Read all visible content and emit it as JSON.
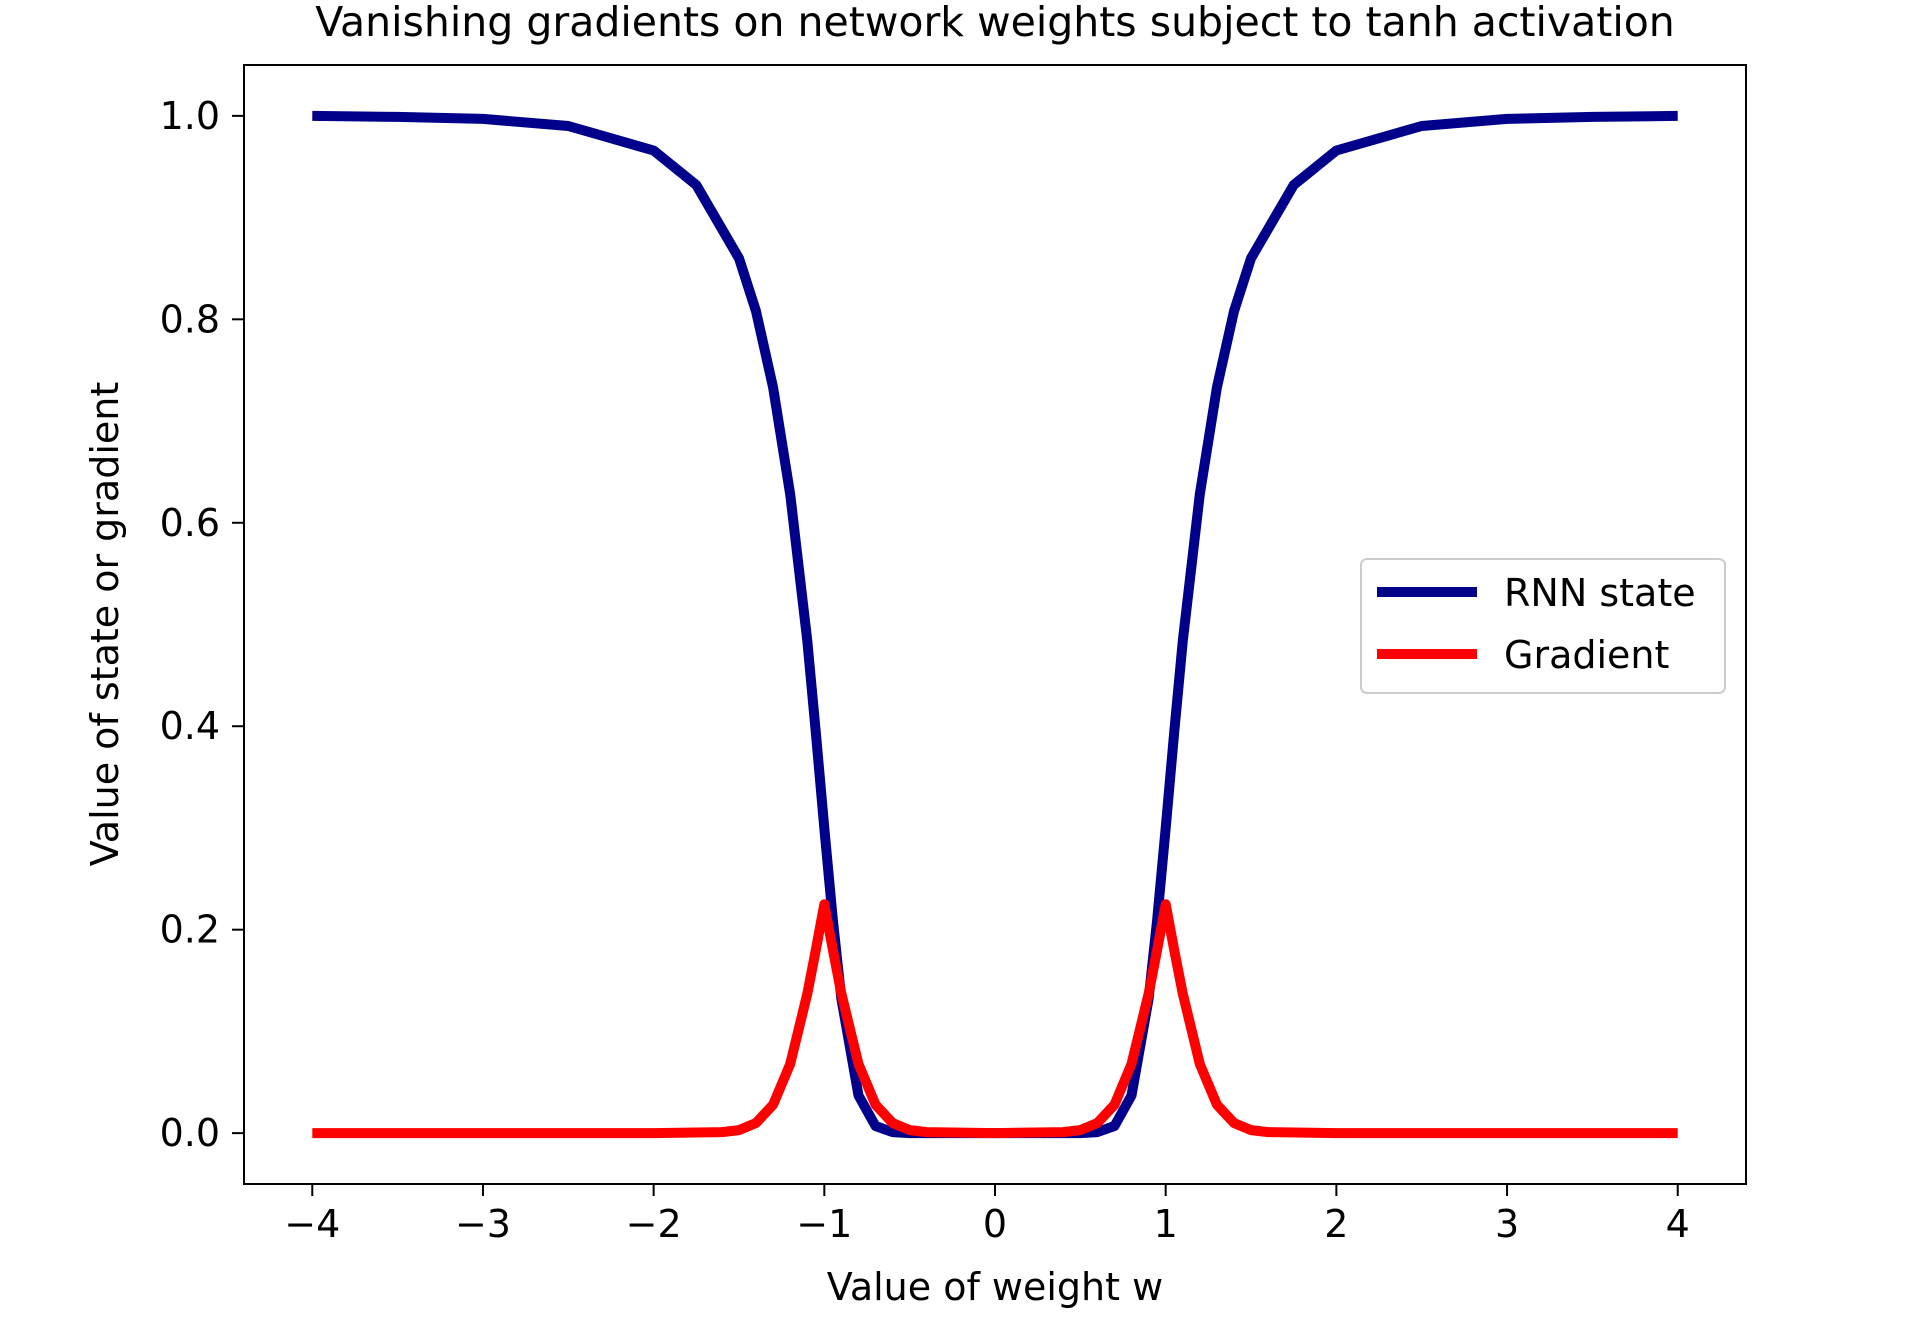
{
  "chart_data": {
    "type": "line",
    "title": "Vanishing gradients on network weights subject to tanh activation",
    "xlabel": "Value of weight w",
    "ylabel": "Value of state or gradient",
    "xlim": [
      -4.4,
      4.4
    ],
    "ylim": [
      -0.05,
      1.05
    ],
    "xticks": [
      -4,
      -3,
      -2,
      -1,
      0,
      1,
      2,
      3,
      4
    ],
    "xtick_labels": [
      "−4",
      "−3",
      "−2",
      "−1",
      "0",
      "1",
      "2",
      "3",
      "4"
    ],
    "yticks": [
      0.0,
      0.2,
      0.4,
      0.6,
      0.8,
      1.0
    ],
    "ytick_labels": [
      "0.0",
      "0.2",
      "0.4",
      "0.6",
      "0.8",
      "1.0"
    ],
    "grid": false,
    "legend_position": "center-right",
    "series": [
      {
        "name": "RNN state",
        "color": "#00008b",
        "x": [
          -4.0,
          -3.5,
          -3.0,
          -2.5,
          -2.0,
          -1.75,
          -1.5,
          -1.4,
          -1.3,
          -1.2,
          -1.1,
          -1.05,
          -1.0,
          -0.95,
          -0.9,
          -0.8,
          -0.7,
          -0.6,
          -0.5,
          -0.4,
          0.0,
          0.4,
          0.5,
          0.6,
          0.7,
          0.8,
          0.9,
          0.95,
          1.0,
          1.05,
          1.1,
          1.2,
          1.3,
          1.4,
          1.5,
          1.75,
          2.0,
          2.5,
          3.0,
          3.5,
          4.0
        ],
        "y": [
          1.0,
          0.999,
          0.997,
          0.99,
          0.966,
          0.932,
          0.86,
          0.808,
          0.733,
          0.628,
          0.484,
          0.394,
          0.3,
          0.209,
          0.132,
          0.037,
          0.007,
          0.001,
          0.0,
          0.0,
          0.0,
          0.0,
          0.0,
          0.001,
          0.007,
          0.037,
          0.132,
          0.209,
          0.3,
          0.394,
          0.484,
          0.628,
          0.733,
          0.808,
          0.86,
          0.932,
          0.966,
          0.99,
          0.997,
          0.999,
          1.0
        ]
      },
      {
        "name": "Gradient",
        "color": "#ff0000",
        "x": [
          -4.0,
          -2.0,
          -1.6,
          -1.5,
          -1.4,
          -1.3,
          -1.2,
          -1.1,
          -1.05,
          -1.0,
          -0.95,
          -0.9,
          -0.8,
          -0.7,
          -0.6,
          -0.5,
          -0.4,
          0.0,
          0.4,
          0.5,
          0.6,
          0.7,
          0.8,
          0.9,
          0.95,
          1.0,
          1.05,
          1.1,
          1.2,
          1.3,
          1.4,
          1.5,
          1.6,
          2.0,
          4.0
        ],
        "y": [
          0.0,
          0.0,
          0.001,
          0.003,
          0.01,
          0.028,
          0.068,
          0.137,
          0.18,
          0.225,
          0.18,
          0.137,
          0.068,
          0.028,
          0.01,
          0.003,
          0.001,
          0.0,
          0.001,
          0.003,
          0.01,
          0.028,
          0.068,
          0.137,
          0.18,
          0.225,
          0.18,
          0.137,
          0.068,
          0.028,
          0.01,
          0.003,
          0.001,
          0.0,
          0.0
        ]
      }
    ]
  }
}
